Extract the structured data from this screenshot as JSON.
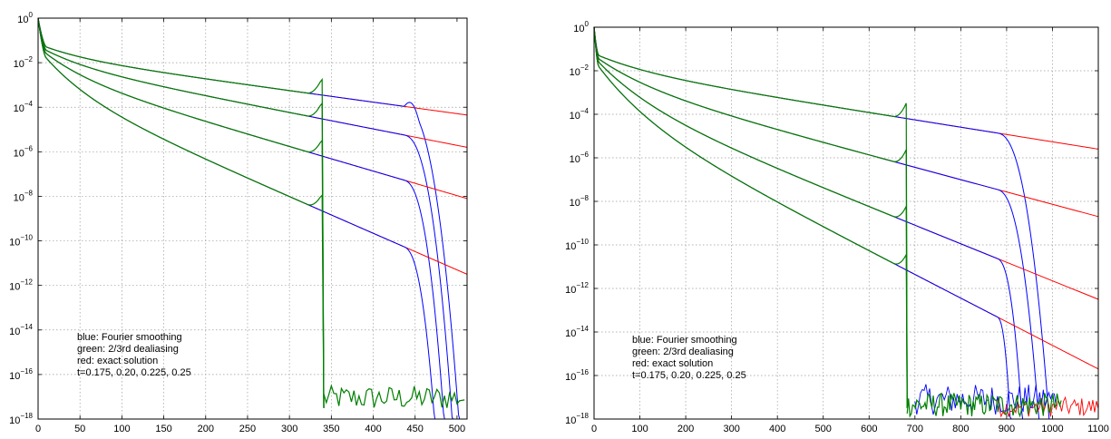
{
  "colors": {
    "blue": "#0000ff",
    "green": "#007f00",
    "red": "#ff0000",
    "grid": "#9a9a9a",
    "frame": "#000000"
  },
  "chart_data": [
    {
      "type": "line",
      "yscale": "log",
      "grid": true,
      "xlim": [
        0,
        512
      ],
      "ylim": [
        1e-18,
        1
      ],
      "xticks": [
        0,
        50,
        100,
        150,
        200,
        250,
        300,
        350,
        400,
        450,
        500
      ],
      "yticks": [
        {
          "base": "10",
          "exp": "0"
        },
        {
          "base": "10",
          "exp": "−2"
        },
        {
          "base": "10",
          "exp": "−4"
        },
        {
          "base": "10",
          "exp": "−6"
        },
        {
          "base": "10",
          "exp": "−8"
        },
        {
          "base": "10",
          "exp": "−10"
        },
        {
          "base": "10",
          "exp": "−12"
        },
        {
          "base": "10",
          "exp": "−14"
        },
        {
          "base": "10",
          "exp": "−16"
        },
        {
          "base": "10",
          "exp": "−18"
        }
      ],
      "annotation": [
        "blue: Fourier smoothing",
        "green: 2/3rd dealiasing",
        "red: exact solution",
        "t=0.175, 0.20, 0.225, 0.25"
      ],
      "curves_log10": {
        "t": [
          "0.25",
          "0.225",
          "0.20",
          "0.175"
        ],
        "start": [
          0,
          0,
          0,
          0
        ],
        "at_10": [
          -1.3,
          -1.45,
          -1.6,
          -1.8
        ],
        "end_exponent": [
          -4.35,
          -5.8,
          -8.1,
          -11.5
        ],
        "bend_x": [
          437,
          437,
          437,
          437
        ],
        "blue_cutoff_x": [
          510,
          504,
          497,
          490
        ],
        "green_cutoff_x": 341
      },
      "green_noise_floor_log10": [
        -17.6,
        -16.5
      ],
      "blue_bottom_log10": -17.8
    },
    {
      "type": "line",
      "yscale": "log",
      "grid": true,
      "xlim": [
        0,
        1100
      ],
      "ylim": [
        1e-18,
        1
      ],
      "xticks": [
        0,
        100,
        200,
        300,
        400,
        500,
        600,
        700,
        800,
        900,
        1000,
        1100
      ],
      "yticks": [
        {
          "base": "10",
          "exp": "0"
        },
        {
          "base": "10",
          "exp": "−2"
        },
        {
          "base": "10",
          "exp": "−4"
        },
        {
          "base": "10",
          "exp": "−6"
        },
        {
          "base": "10",
          "exp": "−8"
        },
        {
          "base": "10",
          "exp": "−10"
        },
        {
          "base": "10",
          "exp": "−12"
        },
        {
          "base": "10",
          "exp": "−14"
        },
        {
          "base": "10",
          "exp": "−16"
        },
        {
          "base": "10",
          "exp": "−18"
        }
      ],
      "annotation": [
        "blue: Fourier smoothing",
        "green: 2/3rd dealiasing",
        "red: exact solution",
        "t=0.175, 0.20, 0.225, 0.25"
      ],
      "curves_log10": {
        "t": [
          "0.25",
          "0.225",
          "0.20",
          "0.175"
        ],
        "start": [
          0,
          0,
          0,
          0
        ],
        "at_10": [
          -1.3,
          -1.45,
          -1.6,
          -1.8
        ],
        "end_exponent": [
          -5.6,
          -8.7,
          -12.5,
          -15.7
        ],
        "bend_x": [
          880,
          880,
          880,
          880
        ],
        "blue_cutoff_x": [
          1010,
          995,
          960,
          930
        ],
        "green_cutoff_x": 683
      },
      "green_noise_floor_log10": [
        -17.9,
        -16.8
      ],
      "blue_noise_floor_log10": [
        -17.8,
        -16.4
      ],
      "red_noise_floor_log10": [
        -17.9,
        -17.0
      ]
    }
  ]
}
